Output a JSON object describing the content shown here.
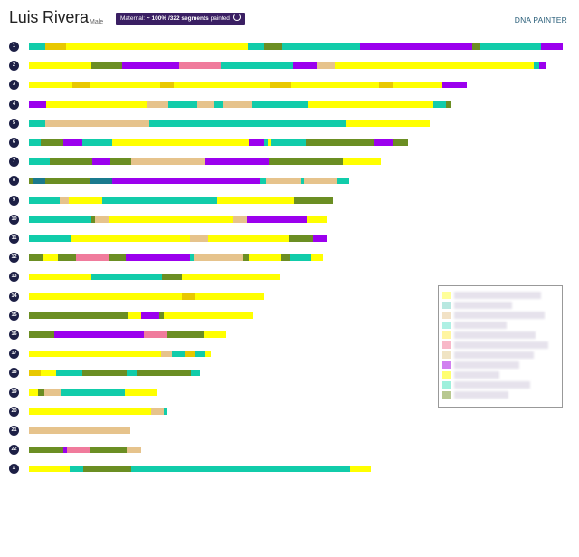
{
  "profile": {
    "name": "Luis Rivera",
    "sex": "Male"
  },
  "status_badge": {
    "prefix": "Maternal:",
    "percent": "~ 100%",
    "segments": "/322 segments",
    "suffix": "painted",
    "refresh_icon": "refresh-icon"
  },
  "app": {
    "brand": "DNA PAINTER"
  },
  "colors": {
    "base": "#ffff00",
    "teal": "#11ccaa",
    "olive": "#6b8e23",
    "purple": "#9b00ee",
    "tan": "#e6c38c",
    "pink": "#f07b9c",
    "gold": "#e8c800",
    "steel": "#1a7a8e"
  },
  "chromosomes": [
    {
      "label": "1",
      "length": 1.0,
      "segments": [
        {
          "s": 0,
          "e": 0.03,
          "c": "teal"
        },
        {
          "s": 0.03,
          "e": 0.07,
          "c": "gold"
        },
        {
          "s": 0.41,
          "e": 0.44,
          "c": "teal"
        },
        {
          "s": 0.44,
          "e": 0.475,
          "c": "olive"
        },
        {
          "s": 0.475,
          "e": 0.62,
          "c": "teal"
        },
        {
          "s": 0.62,
          "e": 0.83,
          "c": "purple"
        },
        {
          "s": 0.83,
          "e": 0.845,
          "c": "olive"
        },
        {
          "s": 0.845,
          "e": 0.96,
          "c": "teal"
        },
        {
          "s": 0.96,
          "e": 1.0,
          "c": "purple"
        }
      ]
    },
    {
      "label": "2",
      "length": 0.97,
      "segments": [
        {
          "s": 0.12,
          "e": 0.18,
          "c": "olive"
        },
        {
          "s": 0.18,
          "e": 0.29,
          "c": "purple"
        },
        {
          "s": 0.29,
          "e": 0.37,
          "c": "pink"
        },
        {
          "s": 0.37,
          "e": 0.51,
          "c": "teal"
        },
        {
          "s": 0.51,
          "e": 0.555,
          "c": "purple"
        },
        {
          "s": 0.555,
          "e": 0.59,
          "c": "tan"
        },
        {
          "s": 0.975,
          "e": 0.985,
          "c": "teal"
        },
        {
          "s": 0.985,
          "e": 1.0,
          "c": "purple"
        }
      ]
    },
    {
      "label": "3",
      "length": 0.82,
      "segments": [
        {
          "s": 0.1,
          "e": 0.14,
          "c": "gold"
        },
        {
          "s": 0.3,
          "e": 0.33,
          "c": "gold"
        },
        {
          "s": 0.55,
          "e": 0.6,
          "c": "gold"
        },
        {
          "s": 0.8,
          "e": 0.83,
          "c": "gold"
        },
        {
          "s": 0.945,
          "e": 1.0,
          "c": "purple"
        }
      ]
    },
    {
      "label": "4",
      "length": 0.79,
      "segments": [
        {
          "s": 0,
          "e": 0.04,
          "c": "purple"
        },
        {
          "s": 0.28,
          "e": 0.33,
          "c": "tan"
        },
        {
          "s": 0.33,
          "e": 0.4,
          "c": "teal"
        },
        {
          "s": 0.4,
          "e": 0.44,
          "c": "tan"
        },
        {
          "s": 0.44,
          "e": 0.46,
          "c": "teal"
        },
        {
          "s": 0.46,
          "e": 0.53,
          "c": "tan"
        },
        {
          "s": 0.53,
          "e": 0.66,
          "c": "teal"
        },
        {
          "s": 0.96,
          "e": 0.99,
          "c": "teal"
        },
        {
          "s": 0.99,
          "e": 1.0,
          "c": "olive"
        }
      ]
    },
    {
      "label": "5",
      "length": 0.75,
      "segments": [
        {
          "s": 0,
          "e": 0.04,
          "c": "teal"
        },
        {
          "s": 0.04,
          "e": 0.3,
          "c": "tan"
        },
        {
          "s": 0.3,
          "e": 0.79,
          "c": "teal"
        }
      ]
    },
    {
      "label": "6",
      "length": 0.71,
      "segments": [
        {
          "s": 0,
          "e": 0.03,
          "c": "teal"
        },
        {
          "s": 0.03,
          "e": 0.09,
          "c": "olive"
        },
        {
          "s": 0.09,
          "e": 0.14,
          "c": "purple"
        },
        {
          "s": 0.14,
          "e": 0.22,
          "c": "teal"
        },
        {
          "s": 0.58,
          "e": 0.62,
          "c": "purple"
        },
        {
          "s": 0.62,
          "e": 0.63,
          "c": "teal"
        },
        {
          "s": 0.64,
          "e": 0.73,
          "c": "teal"
        },
        {
          "s": 0.73,
          "e": 0.91,
          "c": "olive"
        },
        {
          "s": 0.91,
          "e": 0.96,
          "c": "purple"
        },
        {
          "s": 0.96,
          "e": 1.0,
          "c": "olive"
        }
      ]
    },
    {
      "label": "7",
      "length": 0.66,
      "segments": [
        {
          "s": 0,
          "e": 0.06,
          "c": "teal"
        },
        {
          "s": 0.06,
          "e": 0.18,
          "c": "olive"
        },
        {
          "s": 0.18,
          "e": 0.23,
          "c": "purple"
        },
        {
          "s": 0.23,
          "e": 0.29,
          "c": "olive"
        },
        {
          "s": 0.29,
          "e": 0.5,
          "c": "tan"
        },
        {
          "s": 0.5,
          "e": 0.68,
          "c": "purple"
        },
        {
          "s": 0.68,
          "e": 0.89,
          "c": "olive"
        }
      ]
    },
    {
      "label": "8",
      "length": 0.6,
      "segments": [
        {
          "s": 0,
          "e": 0.01,
          "c": "olive"
        },
        {
          "s": 0.01,
          "e": 0.05,
          "c": "steel"
        },
        {
          "s": 0.05,
          "e": 0.19,
          "c": "olive"
        },
        {
          "s": 0.19,
          "e": 0.26,
          "c": "steel"
        },
        {
          "s": 0.26,
          "e": 0.72,
          "c": "purple"
        },
        {
          "s": 0.72,
          "e": 0.74,
          "c": "teal"
        },
        {
          "s": 0.74,
          "e": 0.85,
          "c": "tan"
        },
        {
          "s": 0.85,
          "e": 0.86,
          "c": "teal"
        },
        {
          "s": 0.86,
          "e": 0.96,
          "c": "tan"
        },
        {
          "s": 0.96,
          "e": 1.0,
          "c": "teal"
        }
      ]
    },
    {
      "label": "9",
      "length": 0.57,
      "segments": [
        {
          "s": 0,
          "e": 0.1,
          "c": "teal"
        },
        {
          "s": 0.1,
          "e": 0.13,
          "c": "tan"
        },
        {
          "s": 0.24,
          "e": 0.62,
          "c": "teal"
        },
        {
          "s": 0.87,
          "e": 1.0,
          "c": "olive"
        }
      ]
    },
    {
      "label": "10",
      "length": 0.56,
      "segments": [
        {
          "s": 0,
          "e": 0.21,
          "c": "teal"
        },
        {
          "s": 0.21,
          "e": 0.22,
          "c": "olive"
        },
        {
          "s": 0.22,
          "e": 0.27,
          "c": "tan"
        },
        {
          "s": 0.68,
          "e": 0.73,
          "c": "tan"
        },
        {
          "s": 0.73,
          "e": 0.93,
          "c": "purple"
        }
      ]
    },
    {
      "label": "11",
      "length": 0.56,
      "segments": [
        {
          "s": 0,
          "e": 0.14,
          "c": "teal"
        },
        {
          "s": 0.54,
          "e": 0.6,
          "c": "tan"
        },
        {
          "s": 0.87,
          "e": 0.95,
          "c": "olive"
        },
        {
          "s": 0.95,
          "e": 1.0,
          "c": "purple"
        }
      ]
    },
    {
      "label": "12",
      "length": 0.55,
      "segments": [
        {
          "s": 0,
          "e": 0.05,
          "c": "olive"
        },
        {
          "s": 0.1,
          "e": 0.16,
          "c": "olive"
        },
        {
          "s": 0.16,
          "e": 0.27,
          "c": "pink"
        },
        {
          "s": 0.27,
          "e": 0.33,
          "c": "olive"
        },
        {
          "s": 0.33,
          "e": 0.55,
          "c": "purple"
        },
        {
          "s": 0.55,
          "e": 0.56,
          "c": "teal"
        },
        {
          "s": 0.56,
          "e": 0.73,
          "c": "tan"
        },
        {
          "s": 0.73,
          "e": 0.75,
          "c": "olive"
        },
        {
          "s": 0.86,
          "e": 0.89,
          "c": "olive"
        },
        {
          "s": 0.89,
          "e": 0.96,
          "c": "teal"
        }
      ]
    },
    {
      "label": "13",
      "length": 0.47,
      "segments": [
        {
          "s": 0.25,
          "e": 0.53,
          "c": "teal"
        },
        {
          "s": 0.53,
          "e": 0.61,
          "c": "olive"
        }
      ]
    },
    {
      "label": "14",
      "length": 0.44,
      "segments": [
        {
          "s": 0.65,
          "e": 0.71,
          "c": "gold"
        }
      ]
    },
    {
      "label": "15",
      "length": 0.42,
      "segments": [
        {
          "s": 0,
          "e": 0.44,
          "c": "olive"
        },
        {
          "s": 0.5,
          "e": 0.58,
          "c": "purple"
        },
        {
          "s": 0.58,
          "e": 0.6,
          "c": "olive"
        }
      ]
    },
    {
      "label": "16",
      "length": 0.37,
      "segments": [
        {
          "s": 0,
          "e": 0.13,
          "c": "olive"
        },
        {
          "s": 0.13,
          "e": 0.58,
          "c": "purple"
        },
        {
          "s": 0.58,
          "e": 0.7,
          "c": "pink"
        },
        {
          "s": 0.7,
          "e": 0.89,
          "c": "olive"
        }
      ]
    },
    {
      "label": "17",
      "length": 0.34,
      "segments": [
        {
          "s": 0.73,
          "e": 0.79,
          "c": "tan"
        },
        {
          "s": 0.79,
          "e": 0.86,
          "c": "teal"
        },
        {
          "s": 0.86,
          "e": 0.91,
          "c": "gold"
        },
        {
          "s": 0.91,
          "e": 0.97,
          "c": "teal"
        }
      ]
    },
    {
      "label": "18",
      "length": 0.32,
      "segments": [
        {
          "s": 0,
          "e": 0.07,
          "c": "gold"
        },
        {
          "s": 0.16,
          "e": 0.31,
          "c": "teal"
        },
        {
          "s": 0.31,
          "e": 0.57,
          "c": "olive"
        },
        {
          "s": 0.57,
          "e": 0.63,
          "c": "teal"
        },
        {
          "s": 0.63,
          "e": 0.95,
          "c": "olive"
        },
        {
          "s": 0.95,
          "e": 1.0,
          "c": "teal"
        }
      ]
    },
    {
      "label": "19",
      "length": 0.24,
      "segments": [
        {
          "s": 0.07,
          "e": 0.12,
          "c": "olive"
        },
        {
          "s": 0.12,
          "e": 0.25,
          "c": "tan"
        },
        {
          "s": 0.25,
          "e": 0.75,
          "c": "teal"
        }
      ]
    },
    {
      "label": "20",
      "length": 0.26,
      "segments": [
        {
          "s": 0.88,
          "e": 0.97,
          "c": "tan"
        },
        {
          "s": 0.97,
          "e": 1.0,
          "c": "teal"
        }
      ]
    },
    {
      "label": "21",
      "length": 0.19,
      "segments": [
        {
          "s": 0,
          "e": 1.0,
          "c": "tan"
        }
      ]
    },
    {
      "label": "22",
      "length": 0.21,
      "segments": [
        {
          "s": 0,
          "e": 0.31,
          "c": "olive"
        },
        {
          "s": 0.31,
          "e": 0.34,
          "c": "purple"
        },
        {
          "s": 0.34,
          "e": 0.54,
          "c": "pink"
        },
        {
          "s": 0.54,
          "e": 0.87,
          "c": "olive"
        },
        {
          "s": 0.87,
          "e": 1.0,
          "c": "tan"
        }
      ]
    },
    {
      "label": "X",
      "length": 0.64,
      "segments": [
        {
          "s": 0,
          "e": 0.12,
          "c": "base"
        },
        {
          "s": 0.12,
          "e": 0.16,
          "c": "teal"
        },
        {
          "s": 0.16,
          "e": 0.3,
          "c": "olive"
        },
        {
          "s": 0.3,
          "e": 0.94,
          "c": "teal"
        }
      ]
    }
  ],
  "legend": {
    "items": [
      {
        "swatch": "#ffff9a"
      },
      {
        "swatch": "#b8e8e0"
      },
      {
        "swatch": "#f2e2c6"
      },
      {
        "swatch": "#aef0e4"
      },
      {
        "swatch": "#fff5a0"
      },
      {
        "swatch": "#f8b8c8"
      },
      {
        "swatch": "#f0e4c4"
      },
      {
        "swatch": "#d080f0"
      },
      {
        "swatch": "#ffff70"
      },
      {
        "swatch": "#9ef0dc"
      },
      {
        "swatch": "#b8c890"
      }
    ]
  }
}
